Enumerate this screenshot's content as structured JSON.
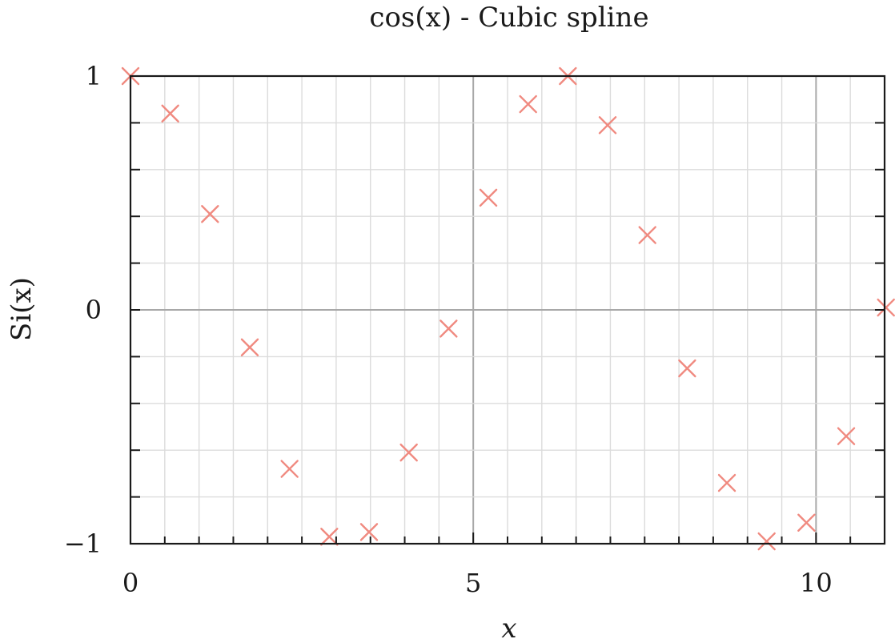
{
  "chart_data": {
    "type": "scatter",
    "title": "cos(x) - Cubic spline",
    "xlabel": "x",
    "ylabel": "Si(x)",
    "xlim": [
      0,
      11
    ],
    "ylim": [
      -1,
      1
    ],
    "x_ticks": [
      0,
      5,
      10
    ],
    "x_tick_labels": [
      "0",
      "5",
      "10"
    ],
    "x_minor_step": 0.5,
    "y_ticks": [
      -1,
      0,
      1
    ],
    "y_tick_labels": [
      "−1",
      "0",
      "1"
    ],
    "y_minor_step": 0.2,
    "grid": true,
    "marker": "x",
    "colors": {
      "marker": "#f08a80",
      "grid_minor": "#dcdcdc",
      "grid_major": "#a8a8a8",
      "frame": "#1a1a1a"
    },
    "series": [
      {
        "x": [
          0,
          0.58,
          1.16,
          1.74,
          2.32,
          2.9,
          3.48,
          4.06,
          4.64,
          5.22,
          5.8,
          6.38,
          6.96,
          7.54,
          8.12,
          8.7,
          9.28,
          9.86,
          10.44,
          11.02
        ],
        "y": [
          1.0,
          0.84,
          0.41,
          -0.16,
          -0.68,
          -0.97,
          -0.95,
          -0.61,
          -0.08,
          0.48,
          0.88,
          1.0,
          0.79,
          0.32,
          -0.25,
          -0.74,
          -0.99,
          -0.91,
          -0.54,
          0.01
        ]
      }
    ]
  }
}
